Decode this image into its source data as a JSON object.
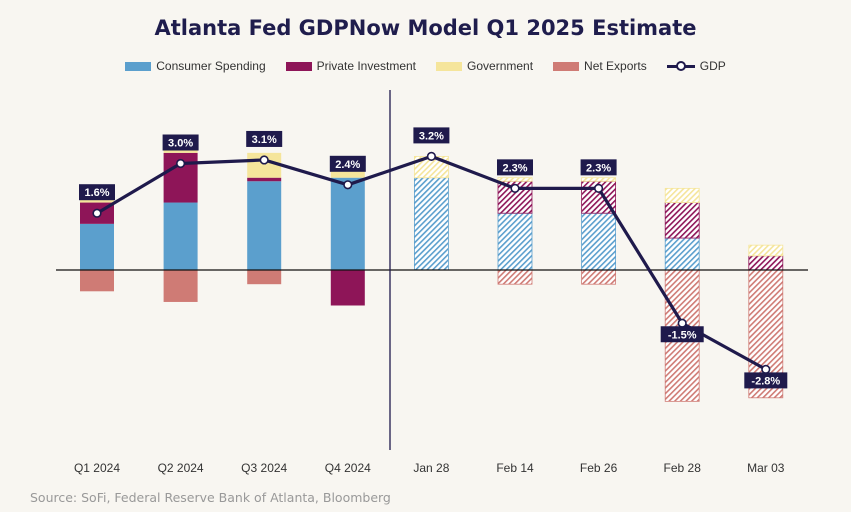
{
  "chart_data": {
    "type": "bar",
    "title": "Atlanta Fed GDPNow Model Q1 2025 Estimate",
    "categories": [
      "Q1 2024",
      "Q2 2024",
      "Q3 2024",
      "Q4 2024",
      "Jan 28",
      "Feb 14",
      "Feb 26",
      "Feb 28",
      "Mar 03"
    ],
    "stacked": true,
    "series": [
      {
        "name": "Consumer Spending",
        "color": "#5b9fcd",
        "values": [
          1.3,
          1.9,
          2.5,
          2.6,
          2.6,
          1.6,
          1.6,
          0.9,
          0.0
        ]
      },
      {
        "name": "Private Investment",
        "color": "#8e1558",
        "values": [
          0.6,
          1.4,
          0.1,
          -1.0,
          0.0,
          0.9,
          0.9,
          1.0,
          0.4
        ]
      },
      {
        "name": "Government",
        "color": "#f5e59b",
        "values": [
          0.1,
          0.2,
          0.7,
          0.2,
          0.6,
          0.1,
          0.1,
          0.4,
          0.3
        ]
      },
      {
        "name": "Net Exports",
        "color": "#cf7b75",
        "values": [
          -0.6,
          -0.9,
          -0.4,
          0.2,
          0.0,
          -0.4,
          -0.4,
          -3.7,
          -3.6
        ]
      }
    ],
    "gdp_line": {
      "name": "GDP",
      "color": "#1f1a4c",
      "values": [
        1.6,
        3.0,
        3.1,
        2.4,
        3.2,
        2.3,
        2.3,
        -1.5,
        -2.8
      ]
    },
    "data_labels": [
      "1.6%",
      "3.0%",
      "3.1%",
      "2.4%",
      "3.2%",
      "2.3%",
      "2.3%",
      "-1.5%",
      "-2.8%"
    ],
    "hatched_from_index": 4,
    "ylim": [
      -3.8,
      5.3
    ],
    "grid": false,
    "legend_position": "top"
  },
  "source": "Source: SoFi, Federal Reserve Bank of Atlanta, Bloomberg"
}
